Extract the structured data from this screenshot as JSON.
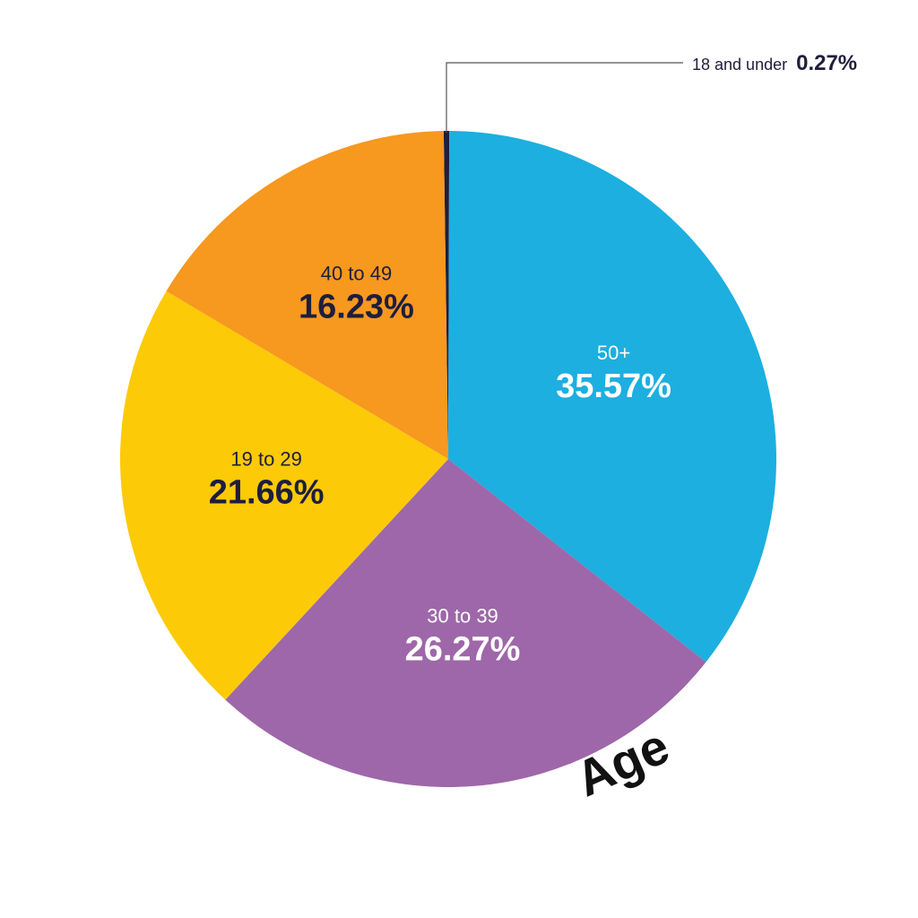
{
  "chart_data": {
    "type": "pie",
    "title": "Age",
    "slices": [
      {
        "label": "18 and under",
        "value": 0.27,
        "display": "0.27%",
        "color": "#1e1e3c",
        "text_color": "#1e1e3c",
        "callout": true
      },
      {
        "label": "50+",
        "value": 35.57,
        "display": "35.57%",
        "color": "#1cafe0",
        "text_color": "#ffffff"
      },
      {
        "label": "30 to 39",
        "value": 26.27,
        "display": "26.27%",
        "color": "#9e67a9",
        "text_color": "#ffffff"
      },
      {
        "label": "19 to 29",
        "value": 21.66,
        "display": "21.66%",
        "color": "#fcca07",
        "text_color": "#1e1e3c"
      },
      {
        "label": "40 to 49",
        "value": 16.23,
        "display": "16.23%",
        "color": "#f7981f",
        "text_color": "#1e1e3c"
      }
    ]
  }
}
